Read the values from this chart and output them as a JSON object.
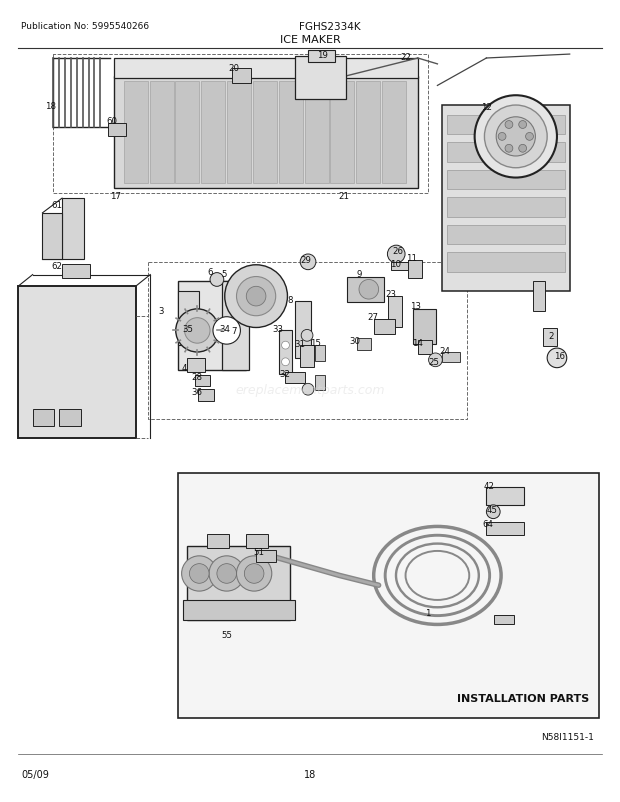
{
  "title_pub": "Publication No: 5995540266",
  "title_model": "FGHS2334K",
  "title_section": "ICE MAKER",
  "footer_date": "05/09",
  "footer_page": "18",
  "diagram_id": "N58I1151-1",
  "install_parts_label": "INSTALLATION PARTS",
  "bg_color": "#ffffff",
  "lc": "#222222",
  "gray1": "#aaaaaa",
  "gray2": "#cccccc",
  "gray3": "#888888",
  "gray4": "#555555",
  "watermark": "ereplacementparts.com"
}
